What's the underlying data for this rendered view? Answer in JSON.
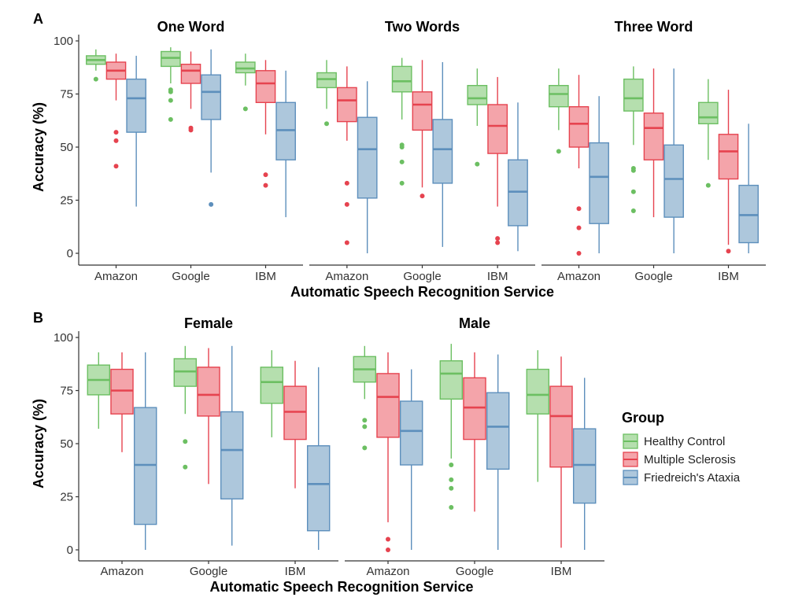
{
  "colors": {
    "Healthy Control": {
      "fill": "#b5dfae",
      "stroke": "#6cbf62",
      "dot": "#6cbf62"
    },
    "Multiple Sclerosis": {
      "fill": "#f4a4aa",
      "stroke": "#e6434f",
      "dot": "#e6434f"
    },
    "Friedreich's Ataxia": {
      "fill": "#adc7dc",
      "stroke": "#5d8fbc",
      "dot": "#5d8fbc"
    }
  },
  "legend": {
    "title": "Group",
    "items": [
      "Healthy Control",
      "Multiple Sclerosis",
      "Friedreich's Ataxia"
    ]
  },
  "chart_data": [
    {
      "panel": "A",
      "type": "boxplot",
      "ylabel": "Accuracy (%)",
      "xlabel": "Automatic Speech Recognition Service",
      "ylim": [
        0,
        100
      ],
      "yticks": [
        0,
        25,
        50,
        75,
        100
      ],
      "categories": [
        "Amazon",
        "Google",
        "IBM"
      ],
      "groups": [
        "Healthy Control",
        "Multiple Sclerosis",
        "Friedreich's Ataxia"
      ],
      "facets": [
        {
          "title": "One Word",
          "boxes": [
            [
              {
                "min": 86,
                "q1": 89,
                "median": 91,
                "q3": 93,
                "max": 96,
                "outliers": [
                  82
                ]
              },
              {
                "min": 72,
                "q1": 82,
                "median": 86,
                "q3": 90,
                "max": 94,
                "outliers": [
                  57,
                  53,
                  41
                ]
              },
              {
                "min": 22,
                "q1": 57,
                "median": 73,
                "q3": 82,
                "max": 93,
                "outliers": []
              }
            ],
            [
              {
                "min": 80,
                "q1": 88,
                "median": 92,
                "q3": 95,
                "max": 97,
                "outliers": [
                  77,
                  76,
                  72,
                  63
                ]
              },
              {
                "min": 68,
                "q1": 80,
                "median": 86,
                "q3": 89,
                "max": 95,
                "outliers": [
                  59,
                  58
                ]
              },
              {
                "min": 38,
                "q1": 63,
                "median": 76,
                "q3": 84,
                "max": 96,
                "outliers": [
                  23
                ]
              }
            ],
            [
              {
                "min": 79,
                "q1": 85,
                "median": 87,
                "q3": 90,
                "max": 94,
                "outliers": [
                  68
                ]
              },
              {
                "min": 56,
                "q1": 71,
                "median": 80,
                "q3": 86,
                "max": 91,
                "outliers": [
                  37,
                  32
                ]
              },
              {
                "min": 17,
                "q1": 44,
                "median": 58,
                "q3": 71,
                "max": 86,
                "outliers": []
              }
            ]
          ]
        },
        {
          "title": "Two Words",
          "boxes": [
            [
              {
                "min": 68,
                "q1": 78,
                "median": 82,
                "q3": 85,
                "max": 91,
                "outliers": [
                  61
                ]
              },
              {
                "min": 53,
                "q1": 62,
                "median": 72,
                "q3": 78,
                "max": 88,
                "outliers": [
                  33,
                  23,
                  5
                ]
              },
              {
                "min": 0,
                "q1": 26,
                "median": 49,
                "q3": 64,
                "max": 81,
                "outliers": []
              }
            ],
            [
              {
                "min": 63,
                "q1": 76,
                "median": 81,
                "q3": 88,
                "max": 92,
                "outliers": [
                  51,
                  50,
                  43,
                  33
                ]
              },
              {
                "min": 31,
                "q1": 58,
                "median": 70,
                "q3": 76,
                "max": 91,
                "outliers": [
                  27
                ]
              },
              {
                "min": 3,
                "q1": 33,
                "median": 49,
                "q3": 63,
                "max": 90,
                "outliers": []
              }
            ],
            [
              {
                "min": 60,
                "q1": 70,
                "median": 73,
                "q3": 79,
                "max": 87,
                "outliers": [
                  42
                ]
              },
              {
                "min": 22,
                "q1": 47,
                "median": 60,
                "q3": 70,
                "max": 83,
                "outliers": [
                  7,
                  5
                ]
              },
              {
                "min": 1,
                "q1": 13,
                "median": 29,
                "q3": 44,
                "max": 71,
                "outliers": []
              }
            ]
          ]
        },
        {
          "title": "Three Word",
          "boxes": [
            [
              {
                "min": 58,
                "q1": 69,
                "median": 75,
                "q3": 79,
                "max": 87,
                "outliers": [
                  48
                ]
              },
              {
                "min": 40,
                "q1": 50,
                "median": 61,
                "q3": 69,
                "max": 84,
                "outliers": [
                  21,
                  12,
                  0
                ]
              },
              {
                "min": 0,
                "q1": 14,
                "median": 36,
                "q3": 52,
                "max": 74,
                "outliers": []
              }
            ],
            [
              {
                "min": 51,
                "q1": 67,
                "median": 73,
                "q3": 82,
                "max": 88,
                "outliers": [
                  40,
                  39,
                  29,
                  20
                ]
              },
              {
                "min": 17,
                "q1": 44,
                "median": 59,
                "q3": 66,
                "max": 87,
                "outliers": []
              },
              {
                "min": 0,
                "q1": 17,
                "median": 35,
                "q3": 51,
                "max": 87,
                "outliers": []
              }
            ],
            [
              {
                "min": 44,
                "q1": 61,
                "median": 64,
                "q3": 71,
                "max": 82,
                "outliers": [
                  32
                ]
              },
              {
                "min": 4,
                "q1": 35,
                "median": 48,
                "q3": 56,
                "max": 77,
                "outliers": [
                  1
                ]
              },
              {
                "min": 0,
                "q1": 5,
                "median": 18,
                "q3": 32,
                "max": 61,
                "outliers": []
              }
            ]
          ]
        }
      ]
    },
    {
      "panel": "B",
      "type": "boxplot",
      "ylabel": "Accuracy (%)",
      "xlabel": "Automatic Speech Recognition Service",
      "ylim": [
        0,
        100
      ],
      "yticks": [
        0,
        25,
        50,
        75,
        100
      ],
      "categories": [
        "Amazon",
        "Google",
        "IBM"
      ],
      "groups": [
        "Healthy Control",
        "Multiple Sclerosis",
        "Friedreich's Ataxia"
      ],
      "facets": [
        {
          "title": "Female",
          "boxes": [
            [
              {
                "min": 57,
                "q1": 73,
                "median": 80,
                "q3": 87,
                "max": 93,
                "outliers": []
              },
              {
                "min": 46,
                "q1": 64,
                "median": 75,
                "q3": 85,
                "max": 93,
                "outliers": []
              },
              {
                "min": 0,
                "q1": 12,
                "median": 40,
                "q3": 67,
                "max": 93,
                "outliers": []
              }
            ],
            [
              {
                "min": 64,
                "q1": 77,
                "median": 84,
                "q3": 90,
                "max": 96,
                "outliers": [
                  51,
                  39
                ]
              },
              {
                "min": 31,
                "q1": 63,
                "median": 73,
                "q3": 86,
                "max": 95,
                "outliers": []
              },
              {
                "min": 2,
                "q1": 24,
                "median": 47,
                "q3": 65,
                "max": 96,
                "outliers": []
              }
            ],
            [
              {
                "min": 53,
                "q1": 69,
                "median": 79,
                "q3": 86,
                "max": 94,
                "outliers": []
              },
              {
                "min": 29,
                "q1": 52,
                "median": 65,
                "q3": 77,
                "max": 89,
                "outliers": []
              },
              {
                "min": 0,
                "q1": 9,
                "median": 31,
                "q3": 49,
                "max": 86,
                "outliers": []
              }
            ]
          ]
        },
        {
          "title": "Male",
          "boxes": [
            [
              {
                "min": 71,
                "q1": 79,
                "median": 85,
                "q3": 91,
                "max": 96,
                "outliers": [
                  61,
                  58,
                  48
                ]
              },
              {
                "min": 13,
                "q1": 53,
                "median": 72,
                "q3": 83,
                "max": 93,
                "outliers": [
                  5,
                  0
                ]
              },
              {
                "min": 0,
                "q1": 40,
                "median": 56,
                "q3": 70,
                "max": 85,
                "outliers": []
              }
            ],
            [
              {
                "min": 43,
                "q1": 71,
                "median": 83,
                "q3": 89,
                "max": 97,
                "outliers": [
                  40,
                  33,
                  29,
                  20
                ]
              },
              {
                "min": 18,
                "q1": 52,
                "median": 67,
                "q3": 81,
                "max": 93,
                "outliers": []
              },
              {
                "min": 0,
                "q1": 38,
                "median": 58,
                "q3": 74,
                "max": 92,
                "outliers": []
              }
            ],
            [
              {
                "min": 32,
                "q1": 64,
                "median": 73,
                "q3": 85,
                "max": 94,
                "outliers": []
              },
              {
                "min": 1,
                "q1": 39,
                "median": 63,
                "q3": 77,
                "max": 91,
                "outliers": []
              },
              {
                "min": 0,
                "q1": 22,
                "median": 40,
                "q3": 57,
                "max": 81,
                "outliers": []
              }
            ]
          ]
        }
      ]
    }
  ]
}
